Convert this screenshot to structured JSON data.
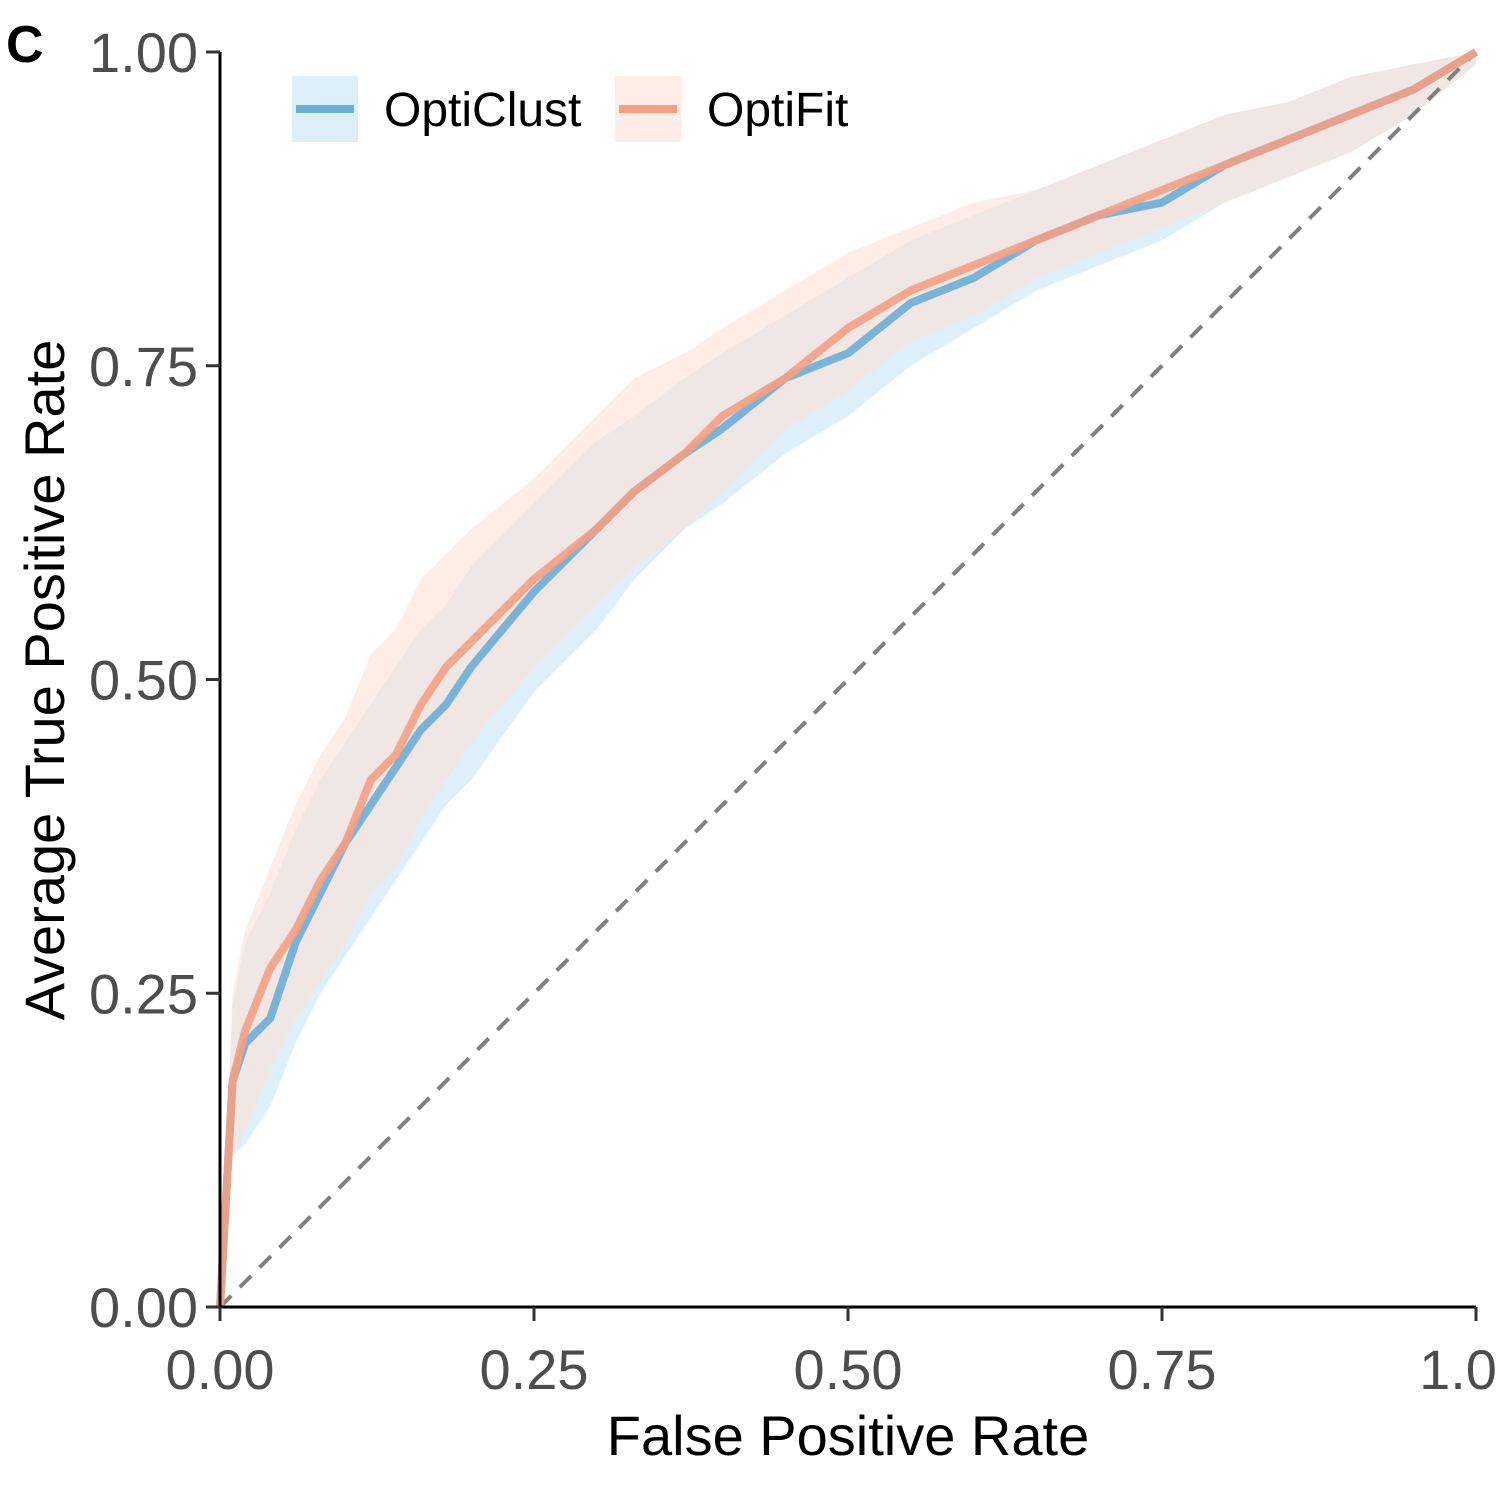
{
  "panel_label": "C",
  "chart_data": {
    "type": "line",
    "title": "",
    "xlabel": "False Positive Rate",
    "ylabel": "Average True Positive Rate",
    "xlim": [
      0,
      1
    ],
    "ylim": [
      0,
      1
    ],
    "xticks": [
      0,
      0.25,
      0.5,
      0.75,
      1
    ],
    "xtick_labels": [
      "0.00",
      "0.25",
      "0.50",
      "0.75",
      "1.0"
    ],
    "yticks": [
      0,
      0.25,
      0.5,
      0.75,
      1
    ],
    "ytick_labels": [
      "0.00",
      "0.25",
      "0.50",
      "0.75",
      "1.00"
    ],
    "grid": false,
    "legend_position": "top-left",
    "reference_line": {
      "x": [
        0,
        1
      ],
      "y": [
        0,
        1
      ],
      "style": "dashed",
      "color": "#808080"
    },
    "series": [
      {
        "name": "OptiClust",
        "color": "#6baed6",
        "band_color": "#c6e4f5",
        "x": [
          0,
          0.01,
          0.02,
          0.04,
          0.06,
          0.08,
          0.1,
          0.12,
          0.14,
          0.16,
          0.18,
          0.2,
          0.25,
          0.3,
          0.33,
          0.37,
          0.4,
          0.45,
          0.5,
          0.55,
          0.6,
          0.65,
          0.7,
          0.75,
          0.8,
          0.85,
          0.9,
          0.95,
          1.0
        ],
        "y": [
          0,
          0.18,
          0.21,
          0.23,
          0.29,
          0.33,
          0.37,
          0.4,
          0.43,
          0.46,
          0.48,
          0.51,
          0.57,
          0.62,
          0.65,
          0.68,
          0.7,
          0.74,
          0.76,
          0.8,
          0.82,
          0.85,
          0.87,
          0.88,
          0.91,
          0.93,
          0.95,
          0.97,
          1.0
        ],
        "lower": [
          0,
          0.12,
          0.13,
          0.16,
          0.21,
          0.25,
          0.28,
          0.31,
          0.34,
          0.37,
          0.4,
          0.42,
          0.49,
          0.54,
          0.58,
          0.62,
          0.64,
          0.68,
          0.71,
          0.75,
          0.78,
          0.81,
          0.83,
          0.85,
          0.88,
          0.9,
          0.92,
          0.95,
          0.99
        ],
        "upper": [
          0,
          0.24,
          0.29,
          0.33,
          0.38,
          0.42,
          0.45,
          0.48,
          0.51,
          0.54,
          0.56,
          0.59,
          0.64,
          0.69,
          0.71,
          0.74,
          0.76,
          0.79,
          0.82,
          0.85,
          0.87,
          0.89,
          0.91,
          0.93,
          0.95,
          0.96,
          0.98,
          0.99,
          1.0
        ]
      },
      {
        "name": "OptiFit",
        "color": "#f4a083",
        "band_color": "#fde0d6",
        "x": [
          0,
          0.01,
          0.02,
          0.04,
          0.06,
          0.08,
          0.1,
          0.12,
          0.14,
          0.16,
          0.18,
          0.2,
          0.25,
          0.3,
          0.33,
          0.37,
          0.4,
          0.45,
          0.5,
          0.55,
          0.6,
          0.65,
          0.7,
          0.75,
          0.8,
          0.85,
          0.9,
          0.95,
          1.0
        ],
        "y": [
          0,
          0.18,
          0.22,
          0.27,
          0.3,
          0.34,
          0.37,
          0.42,
          0.44,
          0.48,
          0.51,
          0.53,
          0.58,
          0.62,
          0.65,
          0.68,
          0.71,
          0.74,
          0.78,
          0.81,
          0.83,
          0.85,
          0.87,
          0.89,
          0.91,
          0.93,
          0.95,
          0.97,
          1.0
        ],
        "lower": [
          0,
          0.12,
          0.14,
          0.19,
          0.23,
          0.26,
          0.29,
          0.33,
          0.35,
          0.39,
          0.42,
          0.45,
          0.51,
          0.56,
          0.59,
          0.62,
          0.65,
          0.7,
          0.73,
          0.77,
          0.79,
          0.82,
          0.84,
          0.86,
          0.88,
          0.9,
          0.92,
          0.95,
          0.99
        ],
        "upper": [
          0,
          0.25,
          0.3,
          0.35,
          0.4,
          0.44,
          0.47,
          0.52,
          0.54,
          0.58,
          0.6,
          0.62,
          0.66,
          0.71,
          0.74,
          0.76,
          0.78,
          0.81,
          0.84,
          0.86,
          0.88,
          0.89,
          0.91,
          0.93,
          0.95,
          0.96,
          0.98,
          0.99,
          1.0
        ]
      }
    ]
  }
}
